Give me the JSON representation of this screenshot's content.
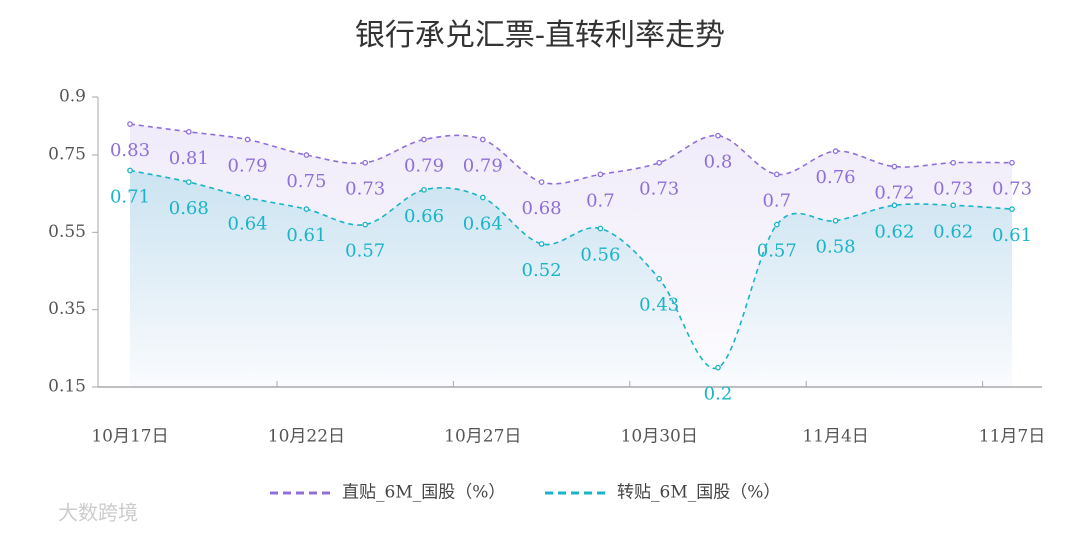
{
  "chart_data": {
    "type": "line",
    "title": "银行承兑汇票-直转利率走势",
    "watermark": "大数跨境",
    "categories": [
      "10月17日",
      null,
      null,
      "10月22日",
      null,
      null,
      "10月27日",
      null,
      null,
      "10月30日",
      null,
      null,
      "11月4日",
      null,
      null,
      "11月7日"
    ],
    "series": [
      {
        "name": "直贴_6M_国股（%）",
        "color": "#9070d8",
        "values": [
          0.83,
          0.81,
          0.79,
          0.75,
          0.73,
          0.79,
          0.79,
          0.68,
          0.7,
          0.73,
          0.8,
          0.7,
          0.76,
          0.72,
          0.73,
          0.73
        ]
      },
      {
        "name": "转贴_6M_国股（%）",
        "color": "#1ab4c8",
        "values": [
          0.71,
          0.68,
          0.64,
          0.61,
          0.57,
          0.66,
          0.64,
          0.52,
          0.56,
          0.43,
          0.2,
          0.57,
          0.58,
          0.62,
          0.62,
          0.61
        ]
      }
    ],
    "ylim": [
      0.15,
      0.9
    ],
    "yticks": [
      0.15,
      0.35,
      0.55,
      0.75,
      0.9
    ]
  }
}
